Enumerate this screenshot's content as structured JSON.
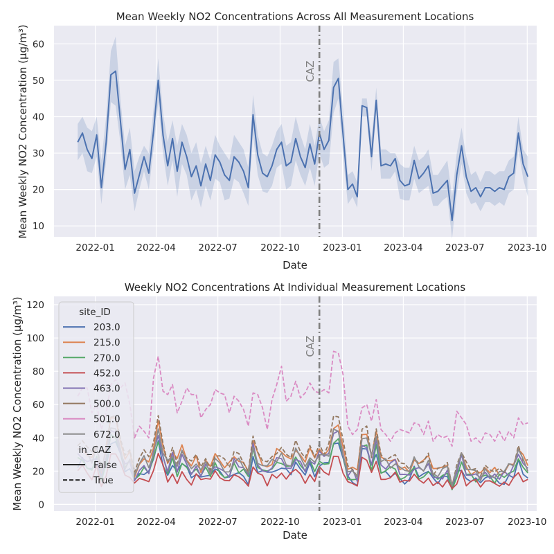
{
  "chart_data": [
    {
      "type": "line",
      "title": "Mean Weekly NO2 Concentrations Across All Measurement Locations",
      "xlabel": "Date",
      "ylabel": "Mean Weekly NO2 Concentration (µg/m³)",
      "xlim": [
        "2021-11-01",
        "2023-10-15"
      ],
      "ylim": [
        7,
        65
      ],
      "xticks": [
        "2022-01",
        "2022-04",
        "2022-07",
        "2022-10",
        "2023-01",
        "2023-04",
        "2023-07",
        "2023-10"
      ],
      "yticks": [
        10,
        20,
        30,
        40,
        50,
        60
      ],
      "grid": true,
      "annotation": {
        "label": "CAZ",
        "x": "2022-11-28"
      },
      "colors": {
        "line": "#4c72b0",
        "band": "#4c72b0",
        "caz": "#7f7f7f",
        "background": "#eaeaf2"
      },
      "series": [
        {
          "start": "2021-12-06",
          "values": [
            33,
            35.5,
            31,
            28.5,
            35,
            20.5,
            33,
            51.5,
            52.5,
            39,
            25.5,
            31,
            19,
            24,
            29,
            24.5,
            36,
            50,
            35,
            26.5,
            34,
            25,
            33,
            29,
            23.5,
            26.5,
            21,
            27,
            22.5,
            29.5,
            27.5,
            24,
            22.5,
            29,
            27.5,
            25,
            20.5,
            40.5,
            29.5,
            24.5,
            23.5,
            26.5,
            31,
            33,
            26.5,
            27.5,
            34,
            29,
            26,
            32.5,
            27,
            35.5,
            31,
            33.5,
            48,
            50.5,
            35,
            20,
            21.5,
            18,
            43,
            42.5,
            29,
            44.5,
            26.5,
            27,
            26.5,
            28.5,
            22.5,
            21,
            21.5,
            28,
            23,
            24.5,
            26.5,
            19,
            19.5,
            21,
            22.5,
            11.5,
            24,
            32,
            23.5,
            19.5,
            20.5,
            18,
            20.5,
            20.5,
            19.5,
            20.5,
            20,
            23.5,
            24.5,
            35.5,
            27,
            23.5
          ],
          "ci_upper": [
            38,
            40,
            37,
            36,
            40,
            28,
            40,
            58,
            62,
            45,
            32,
            37,
            25,
            29,
            32,
            30,
            42,
            56,
            41,
            33,
            39,
            32,
            38,
            35,
            30,
            33,
            27,
            32,
            28,
            35,
            32,
            30,
            28,
            35,
            33,
            31,
            26,
            46,
            35,
            30,
            29,
            32,
            36,
            38,
            32,
            33,
            40,
            35,
            31,
            38,
            32,
            40,
            36,
            39,
            55,
            56,
            42,
            24,
            25,
            22,
            45,
            45,
            34,
            48,
            31,
            31,
            30,
            30,
            27,
            26,
            26,
            32,
            28,
            29,
            31,
            24,
            24,
            26,
            28,
            18,
            30,
            37,
            29,
            24,
            25,
            22,
            25,
            25,
            24,
            25,
            25,
            28,
            29,
            40,
            31,
            29
          ],
          "ci_lower": [
            28,
            30,
            25,
            24.5,
            29,
            16,
            28,
            44,
            43,
            33,
            20,
            24,
            14,
            20,
            25,
            20,
            31,
            44,
            30,
            21,
            28,
            18,
            27,
            24,
            17,
            20,
            15,
            21,
            17,
            23,
            22,
            17,
            17.5,
            23,
            22,
            19,
            15.5,
            35,
            24,
            19.5,
            19,
            21,
            26,
            27,
            20,
            21,
            28,
            24,
            21,
            26,
            21,
            30,
            26,
            27,
            41,
            45,
            29,
            16,
            18,
            15,
            40,
            40,
            25,
            41,
            23,
            23,
            23,
            25,
            17.5,
            17,
            17,
            23,
            19,
            20,
            21,
            15.5,
            15.5,
            17,
            18,
            6.5,
            19,
            27,
            19,
            16,
            16.5,
            14,
            16.5,
            16.5,
            15.5,
            16.5,
            15.5,
            19,
            20,
            31,
            23,
            18
          ]
        }
      ]
    },
    {
      "type": "line",
      "title": "Weekly NO2 Concentrations At Individual Measurement Locations",
      "xlabel": "Date",
      "ylabel": "Mean Weekly NO2 Concentration (µg/m³)",
      "xlim": [
        "2021-11-01",
        "2023-10-15"
      ],
      "ylim": [
        -4,
        125
      ],
      "xticks": [
        "2022-01",
        "2022-04",
        "2022-07",
        "2022-10",
        "2023-01",
        "2023-04",
        "2023-07",
        "2023-10"
      ],
      "yticks": [
        0,
        20,
        40,
        60,
        80,
        100,
        120
      ],
      "grid": true,
      "annotation": {
        "label": "CAZ",
        "x": "2022-11-28"
      },
      "legend": {
        "position": "upper-left",
        "hue_title": "site_ID",
        "style_title": "in_CAZ",
        "style_entries": [
          {
            "label": "False",
            "dash": "solid"
          },
          {
            "label": "True",
            "dash": "dashed"
          }
        ]
      },
      "series": [
        {
          "name": "203.0",
          "color": "#4c72b0",
          "dashed": false,
          "start": "2021-12-06",
          "factor": 0.72,
          "noise_seed": 3
        },
        {
          "name": "215.0",
          "color": "#dd8452",
          "dashed": false,
          "start": "2021-12-06",
          "factor": 1.0,
          "noise_seed": 7
        },
        {
          "name": "270.0",
          "color": "#55a868",
          "dashed": false,
          "start": "2021-12-06",
          "factor": 0.78,
          "noise_seed": 11
        },
        {
          "name": "452.0",
          "color": "#c44e52",
          "dashed": false,
          "start": "2021-12-06",
          "factor": 0.6,
          "noise_seed": 13
        },
        {
          "name": "463.0",
          "color": "#8172b3",
          "dashed": false,
          "start": "2021-12-06",
          "factor": 0.85,
          "noise_seed": 17
        },
        {
          "name": "500.0",
          "color": "#937860",
          "dashed": true,
          "start": "2021-12-06",
          "factor": 1.05,
          "noise_seed": 19
        },
        {
          "name": "501.0",
          "color": "#da8bc3",
          "dashed": true,
          "start": "2021-12-06",
          "factor": 0,
          "noise_seed": 23,
          "values": [
            65,
            70,
            70,
            55,
            60,
            45,
            55,
            72,
            75,
            70,
            73,
            60,
            40,
            47,
            44,
            40,
            76,
            89,
            68,
            66,
            72,
            55,
            62,
            70,
            66,
            66,
            52,
            57,
            60,
            69,
            67,
            66,
            55,
            65,
            62,
            57,
            47,
            67,
            66,
            58,
            45,
            63,
            72,
            83,
            62,
            65,
            74,
            64,
            67,
            73,
            68,
            67,
            69,
            67,
            92,
            91,
            78,
            47,
            42,
            45,
            58,
            60,
            50,
            63,
            45,
            42,
            38,
            43,
            45,
            44,
            43,
            49,
            48,
            42,
            50,
            38,
            42,
            40,
            41,
            35,
            56,
            52,
            48,
            38,
            40,
            37,
            43,
            42,
            38,
            44,
            38,
            44,
            40,
            52,
            48,
            49
          ]
        },
        {
          "name": "672.0",
          "color": "#8c8c8c",
          "dashed": false,
          "start": "2021-12-06",
          "factor": 0.92,
          "noise_seed": 29
        }
      ]
    }
  ]
}
